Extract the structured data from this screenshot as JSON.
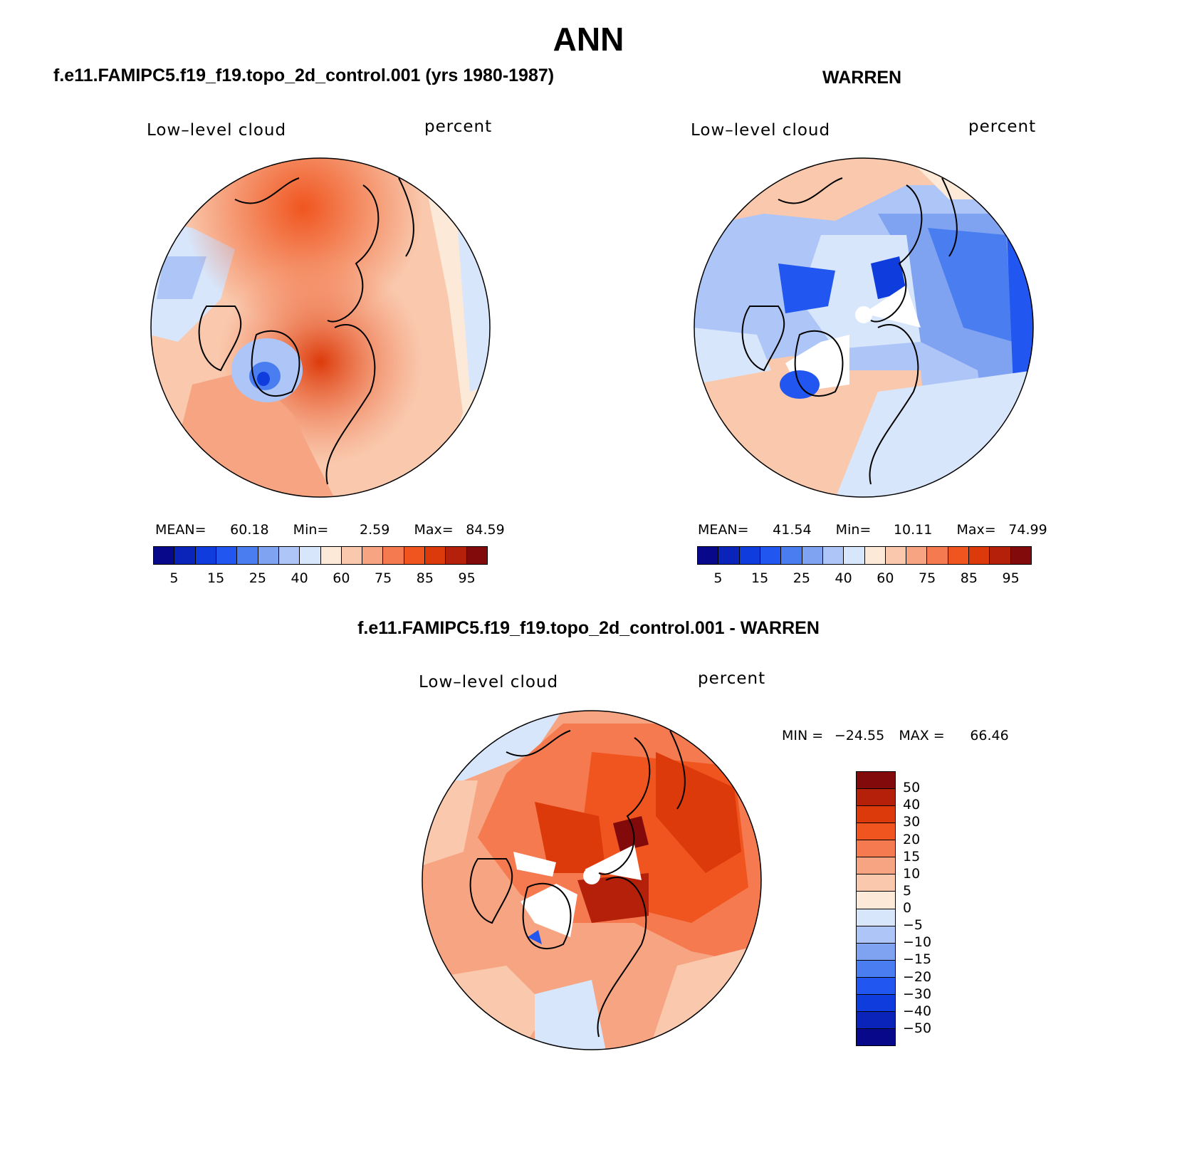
{
  "title": "ANN",
  "panels": {
    "control": {
      "header": "f.e11.FAMIPC5.f19_f19.topo_2d_control.001 (yrs 1980-1987)",
      "variable": "Low–level cloud",
      "units": "percent",
      "mean_label": "MEAN=",
      "mean": "60.18",
      "min_label": "Min=",
      "min": "2.59",
      "max_label": "Max=",
      "max": "84.59"
    },
    "obs": {
      "header": "WARREN",
      "variable": "Low–level cloud",
      "units": "percent",
      "mean_label": "MEAN=",
      "mean": "41.54",
      "min_label": "Min=",
      "min": "10.11",
      "max_label": "Max=",
      "max": "74.99"
    },
    "diff": {
      "header": "f.e11.FAMIPC5.f19_f19.topo_2d_control.001 - WARREN",
      "variable": "Low–level cloud",
      "units": "percent",
      "min_label": "MIN =",
      "min": "−24.55",
      "max_label": "MAX =",
      "max": "66.46"
    }
  },
  "colorbar": {
    "colors": [
      "#08088a",
      "#0a23b8",
      "#0f3cdc",
      "#2156f0",
      "#4a7df0",
      "#7fa3f0",
      "#aec6f7",
      "#d8e6fb",
      "#fce9d8",
      "#f9c8ad",
      "#f6a482",
      "#f57a50",
      "#f0551f",
      "#dc3a0a",
      "#b4200a",
      "#820a0a"
    ],
    "tick_labels": [
      "5",
      "15",
      "25",
      "40",
      "60",
      "75",
      "85",
      "95"
    ]
  },
  "diff_colorbar": {
    "colors": [
      "#820a0a",
      "#b4200a",
      "#dc3a0a",
      "#f0551f",
      "#f57a50",
      "#f6a482",
      "#f9c8ad",
      "#fce9d8",
      "#d8e6fb",
      "#aec6f7",
      "#7fa3f0",
      "#4a7df0",
      "#2156f0",
      "#0f3cdc",
      "#0a23b8",
      "#08088a"
    ],
    "tick_labels": [
      "50",
      "40",
      "30",
      "20",
      "15",
      "10",
      "5",
      "0",
      "−5",
      "−10",
      "−15",
      "−20",
      "−30",
      "−40",
      "−50"
    ]
  },
  "chart_data": [
    {
      "type": "heatmap",
      "projection": "north polar stereographic",
      "title": "f.e11.FAMIPC5.f19_f19.topo_2d_control.001 (yrs 1980-1987)",
      "variable": "Low–level cloud",
      "units": "percent",
      "levels": [
        5,
        10,
        15,
        20,
        25,
        30,
        40,
        50,
        60,
        70,
        75,
        80,
        85,
        90,
        95
      ],
      "mean": 60.18,
      "min": 2.59,
      "max": 84.59
    },
    {
      "type": "heatmap",
      "projection": "north polar stereographic",
      "title": "WARREN",
      "variable": "Low–level cloud",
      "units": "percent",
      "levels": [
        5,
        10,
        15,
        20,
        25,
        30,
        40,
        50,
        60,
        70,
        75,
        80,
        85,
        90,
        95
      ],
      "mean": 41.54,
      "min": 10.11,
      "max": 74.99
    },
    {
      "type": "heatmap",
      "projection": "north polar stereographic",
      "title": "f.e11.FAMIPC5.f19_f19.topo_2d_control.001 - WARREN",
      "variable": "Low–level cloud",
      "units": "percent",
      "levels": [
        -50,
        -40,
        -30,
        -20,
        -15,
        -10,
        -5,
        0,
        5,
        10,
        15,
        20,
        30,
        40,
        50
      ],
      "min": -24.55,
      "max": 66.46
    }
  ]
}
